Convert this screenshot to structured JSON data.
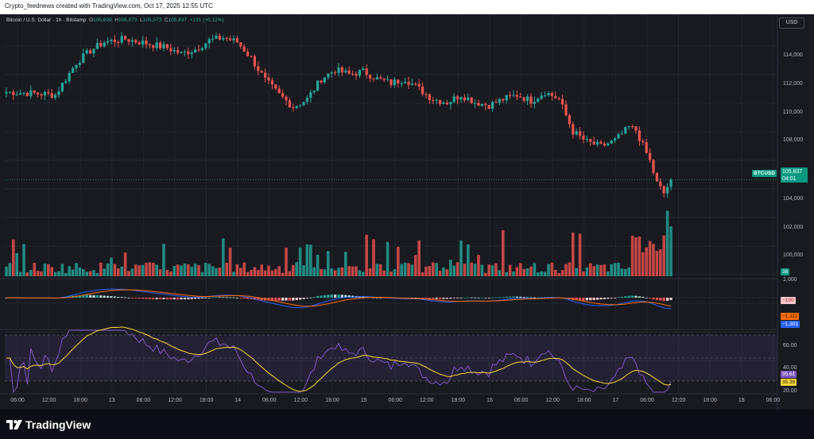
{
  "banner": "Crypto_feednews created with TradingView.com, Oct 17, 2025 12:55 UTC",
  "legend": {
    "symbol": "Bitcoin / U.S. Dollar · 1h · Bitstamp",
    "o_key": "O",
    "o": "105,699",
    "h_key": "H",
    "h": "106,073",
    "l_key": "L",
    "l": "105,573",
    "c_key": "C",
    "c": "105,837",
    "change": "+131 (+0.12%)"
  },
  "currency_button": "USD",
  "price_axis": [
    "114,000",
    "112,000",
    "110,000",
    "108,000",
    "106,000",
    "104,000",
    "102,000",
    "100,000"
  ],
  "price_badge": {
    "symbol": "BTCUSD",
    "price": "105,837",
    "countdown": "04:01"
  },
  "volume_badge": "38",
  "macd": {
    "axis_top": "1,000",
    "histogram": "−190",
    "signal": "−1,111",
    "macd": "−1,301"
  },
  "rsi": {
    "axis": [
      "60.00",
      "40.00",
      "20.00"
    ],
    "rsi": "35.61",
    "ma": "35.38"
  },
  "time_axis": [
    "06:00",
    "12:00",
    "18:00",
    "13",
    "06:00",
    "12:00",
    "18:00",
    "14",
    "06:00",
    "12:00",
    "18:00",
    "15",
    "06:00",
    "12:00",
    "18:00",
    "16",
    "06:00",
    "12:00",
    "18:00",
    "17",
    "06:00",
    "12:00",
    "18:00",
    "18",
    "06:00"
  ],
  "footer_logo": "TradingView",
  "colors": {
    "up": "#26a69a",
    "down": "#ef5350",
    "bg": "#181a20",
    "rsi": "#7e57c2",
    "rsi_ma": "#fdd835",
    "macd": "#2962ff",
    "signal": "#ff6d00"
  },
  "chart_data": {
    "type": "candlestick",
    "interval": "1h",
    "ylim": [
      99000,
      116000
    ],
    "anchors": [
      [
        0,
        111800
      ],
      [
        8,
        111700
      ],
      [
        14,
        111600
      ],
      [
        20,
        113800
      ],
      [
        24,
        114600
      ],
      [
        28,
        115200
      ],
      [
        34,
        115400
      ],
      [
        38,
        115200
      ],
      [
        42,
        115000
      ],
      [
        46,
        114800
      ],
      [
        50,
        114400
      ],
      [
        54,
        114700
      ],
      [
        58,
        115300
      ],
      [
        62,
        115500
      ],
      [
        66,
        115200
      ],
      [
        70,
        114100
      ],
      [
        74,
        112600
      ],
      [
        78,
        111600
      ],
      [
        82,
        110800
      ],
      [
        86,
        111300
      ],
      [
        90,
        112700
      ],
      [
        94,
        113300
      ],
      [
        98,
        113000
      ],
      [
        102,
        113200
      ],
      [
        106,
        112700
      ],
      [
        110,
        112400
      ],
      [
        114,
        112700
      ],
      [
        118,
        112000
      ],
      [
        122,
        111300
      ],
      [
        126,
        111100
      ],
      [
        130,
        111600
      ],
      [
        134,
        111100
      ],
      [
        138,
        110900
      ],
      [
        142,
        111300
      ],
      [
        146,
        111600
      ],
      [
        150,
        111200
      ],
      [
        154,
        111800
      ],
      [
        158,
        111300
      ],
      [
        162,
        109100
      ],
      [
        166,
        108400
      ],
      [
        170,
        108100
      ],
      [
        174,
        108500
      ],
      [
        178,
        109400
      ],
      [
        180,
        109200
      ],
      [
        184,
        107100
      ],
      [
        186,
        105600
      ],
      [
        188,
        104900
      ],
      [
        190,
        105837
      ]
    ]
  }
}
